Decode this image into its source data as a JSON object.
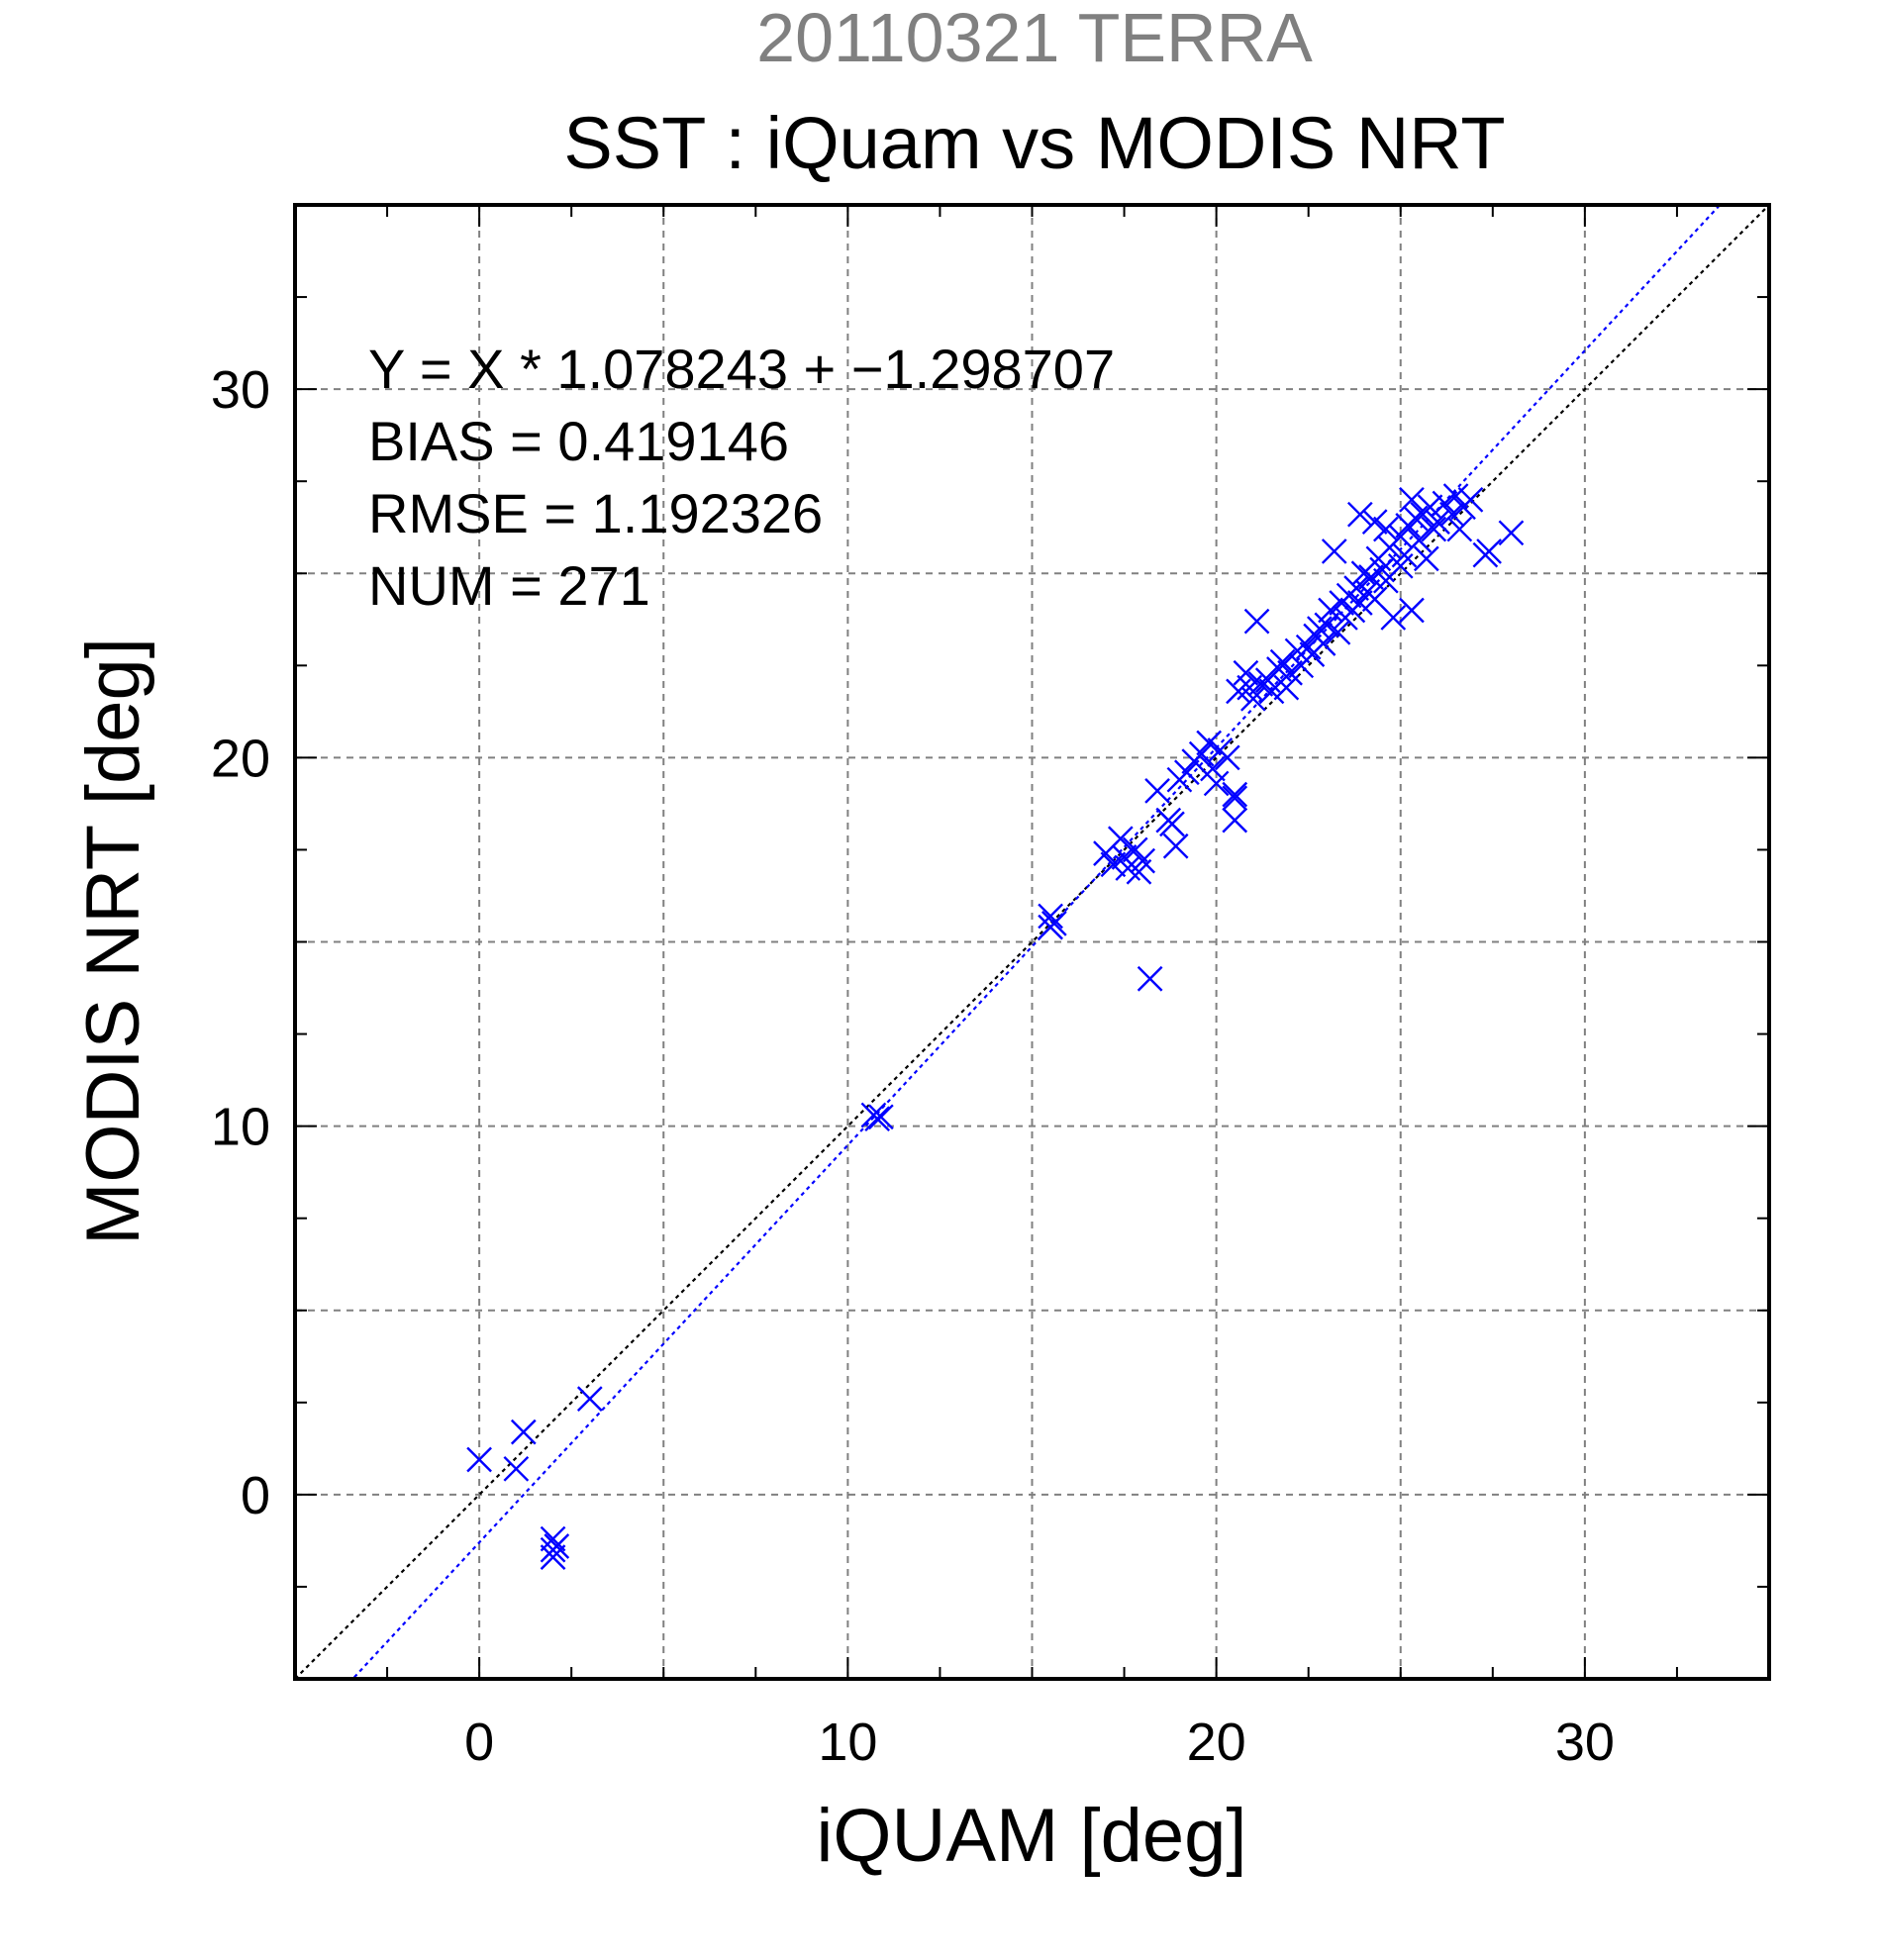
{
  "chart_data": {
    "type": "scatter",
    "supertitle": "20110321 TERRA",
    "title": "SST : iQuam vs MODIS NRT",
    "xlabel": "iQUAM [deg]",
    "ylabel": "MODIS NRT [deg]",
    "xlim": [
      -5,
      35
    ],
    "ylim": [
      -5,
      35
    ],
    "xticks": [
      "0",
      "10",
      "20",
      "30"
    ],
    "yticks": [
      "0",
      "10",
      "20",
      "30"
    ],
    "grid": true,
    "marker": "x",
    "colors": {
      "points": "#0000ff",
      "fit_line": "#0000ff",
      "identity_line": "#000000",
      "supertitle": "#808080"
    },
    "stats": [
      "Y = X * 1.078243 + −1.298707",
      "BIAS = 0.419146",
      "RMSE = 1.192326",
      "NUM = 271"
    ],
    "fit": {
      "slope": 1.078243,
      "intercept": -1.298707
    },
    "identity": {
      "slope": 1,
      "intercept": 0
    },
    "points": [
      [
        0.0,
        0.95
      ],
      [
        1.2,
        1.7
      ],
      [
        1.0,
        0.7
      ],
      [
        3.0,
        2.6
      ],
      [
        2.0,
        -1.2
      ],
      [
        2.0,
        -1.5
      ],
      [
        2.0,
        -1.7
      ],
      [
        2.1,
        -1.4
      ],
      [
        10.7,
        10.3
      ],
      [
        10.8,
        10.2
      ],
      [
        10.9,
        10.25
      ],
      [
        15.5,
        15.7
      ],
      [
        15.5,
        15.4
      ],
      [
        15.6,
        15.5
      ],
      [
        17.0,
        17.4
      ],
      [
        17.2,
        17.1
      ],
      [
        17.4,
        17.8
      ],
      [
        17.5,
        17.3
      ],
      [
        17.6,
        17.0
      ],
      [
        17.8,
        17.5
      ],
      [
        18.0,
        17.2
      ],
      [
        17.9,
        16.9
      ],
      [
        18.2,
        14.0
      ],
      [
        18.4,
        19.1
      ],
      [
        18.7,
        18.3
      ],
      [
        18.8,
        18.2
      ],
      [
        18.9,
        17.6
      ],
      [
        19.0,
        19.4
      ],
      [
        19.2,
        19.6
      ],
      [
        19.4,
        19.9
      ],
      [
        19.6,
        20.1
      ],
      [
        19.8,
        20.4
      ],
      [
        19.9,
        19.7
      ],
      [
        20.0,
        19.3
      ],
      [
        20.1,
        20.2
      ],
      [
        20.3,
        20.0
      ],
      [
        20.5,
        18.9
      ],
      [
        20.5,
        19.0
      ],
      [
        20.5,
        18.3
      ],
      [
        20.6,
        21.8
      ],
      [
        20.8,
        22.3
      ],
      [
        20.9,
        21.9
      ],
      [
        21.0,
        21.6
      ],
      [
        21.1,
        23.7
      ],
      [
        21.2,
        22.0
      ],
      [
        21.4,
        22.1
      ],
      [
        21.5,
        21.8
      ],
      [
        21.7,
        22.4
      ],
      [
        21.8,
        22.6
      ],
      [
        21.9,
        21.9
      ],
      [
        22.0,
        22.3
      ],
      [
        22.2,
        22.9
      ],
      [
        22.3,
        22.5
      ],
      [
        22.5,
        23.0
      ],
      [
        22.6,
        22.8
      ],
      [
        22.7,
        23.3
      ],
      [
        22.8,
        23.5
      ],
      [
        22.9,
        23.1
      ],
      [
        23.0,
        23.6
      ],
      [
        23.1,
        24.0
      ],
      [
        23.3,
        23.4
      ],
      [
        23.4,
        24.2
      ],
      [
        23.5,
        23.8
      ],
      [
        23.6,
        24.4
      ],
      [
        23.7,
        24.0
      ],
      [
        23.8,
        24.6
      ],
      [
        23.9,
        24.2
      ],
      [
        24.0,
        25.0
      ],
      [
        24.1,
        24.5
      ],
      [
        24.2,
        24.9
      ],
      [
        24.3,
        24.3
      ],
      [
        24.4,
        25.4
      ],
      [
        24.5,
        25.1
      ],
      [
        24.6,
        24.8
      ],
      [
        24.7,
        25.7
      ],
      [
        24.8,
        23.8
      ],
      [
        25.0,
        26.0
      ],
      [
        25.1,
        25.5
      ],
      [
        25.2,
        26.3
      ],
      [
        25.3,
        24.0
      ],
      [
        25.4,
        26.5
      ],
      [
        25.5,
        25.9
      ],
      [
        25.6,
        26.6
      ],
      [
        25.7,
        25.4
      ],
      [
        25.8,
        26.8
      ],
      [
        25.9,
        26.2
      ],
      [
        26.0,
        26.4
      ],
      [
        26.2,
        26.9
      ],
      [
        26.4,
        26.6
      ],
      [
        26.5,
        27.1
      ],
      [
        26.6,
        26.2
      ],
      [
        26.7,
        26.8
      ],
      [
        26.9,
        27.0
      ],
      [
        27.3,
        25.5
      ],
      [
        27.4,
        25.6
      ],
      [
        28.0,
        26.1
      ],
      [
        23.9,
        26.6
      ],
      [
        24.3,
        26.4
      ],
      [
        23.2,
        25.6
      ],
      [
        24.6,
        26.2
      ],
      [
        25.0,
        25.2
      ],
      [
        25.3,
        27.0
      ]
    ]
  }
}
